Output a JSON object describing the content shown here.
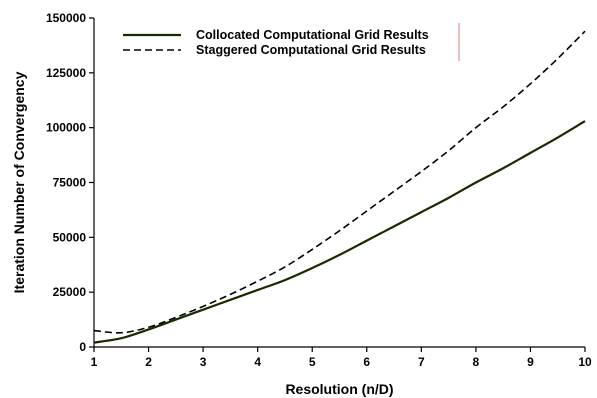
{
  "chart_data": {
    "type": "line",
    "xlabel": "Resolution (n/D)",
    "ylabel": "Iteration Number of Convergency",
    "xlim": [
      1,
      10
    ],
    "ylim": [
      0,
      150000
    ],
    "xticks": [
      1,
      2,
      3,
      4,
      5,
      6,
      7,
      8,
      9,
      10
    ],
    "yticks": [
      0,
      25000,
      50000,
      75000,
      100000,
      125000,
      150000
    ],
    "grid": false,
    "legend_position": "top-left",
    "series": [
      {
        "name": "Collocated Computational Grid Results",
        "style": "solid",
        "color": "#1a2a00",
        "x": [
          1,
          1.5,
          2,
          2.5,
          3,
          3.5,
          4,
          4.5,
          5,
          5.5,
          6,
          6.5,
          7,
          7.5,
          8,
          8.5,
          9,
          9.5,
          10
        ],
        "y": [
          2000,
          4000,
          8000,
          12500,
          17000,
          21500,
          26000,
          30500,
          36000,
          42000,
          48500,
          55000,
          61500,
          68000,
          75000,
          81500,
          88500,
          95500,
          103000
        ]
      },
      {
        "name": "Staggered Computational Grid Results",
        "style": "dashed",
        "color": "#000000",
        "x": [
          1,
          1.5,
          2,
          2.5,
          3,
          3.5,
          4,
          4.5,
          5,
          5.5,
          6,
          6.5,
          7,
          7.5,
          8,
          8.5,
          9,
          9.5,
          10
        ],
        "y": [
          7500,
          6500,
          9000,
          13500,
          18500,
          24000,
          30000,
          36500,
          44500,
          53000,
          62000,
          71000,
          80000,
          89500,
          100000,
          109500,
          120000,
          131500,
          144000
        ]
      }
    ]
  }
}
